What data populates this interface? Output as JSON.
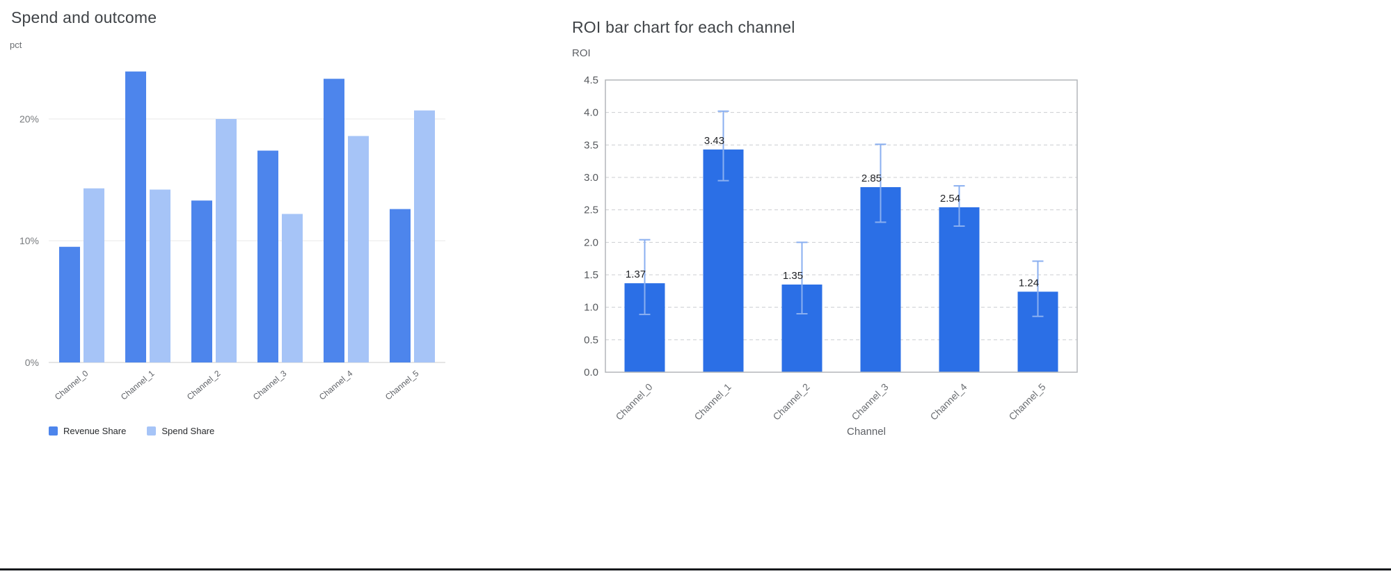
{
  "window": {
    "bottom_border_color": "#17191c"
  },
  "chart_data": [
    {
      "type": "bar",
      "title": "Spend and outcome",
      "ylabel": "pct",
      "xlabel": "",
      "categories": [
        "Channel_0",
        "Channel_1",
        "Channel_2",
        "Channel_3",
        "Channel_4",
        "Channel_5"
      ],
      "series": [
        {
          "name": "Revenue Share",
          "color": "#4d85ec",
          "values": [
            9.5,
            23.9,
            13.3,
            17.4,
            23.3,
            12.6
          ]
        },
        {
          "name": "Spend Share",
          "color": "#a6c4f7",
          "values": [
            14.3,
            14.2,
            20.0,
            12.2,
            18.6,
            20.7
          ]
        }
      ],
      "value_format": "percent",
      "ylim": [
        0,
        24.5
      ],
      "yticks": [
        {
          "value": 0,
          "label": "0%"
        },
        {
          "value": 10,
          "label": "10%"
        },
        {
          "value": 20,
          "label": "20%"
        }
      ],
      "grid": true,
      "legend_position": "bottom"
    },
    {
      "type": "bar",
      "title": "ROI bar chart for each channel",
      "xlabel": "Channel",
      "ylabel": "ROI",
      "categories": [
        "Channel_0",
        "Channel_1",
        "Channel_2",
        "Channel_3",
        "Channel_4",
        "Channel_5"
      ],
      "values": [
        1.37,
        3.43,
        1.35,
        2.85,
        2.54,
        1.24
      ],
      "data_labels": [
        "1.37",
        "3.43",
        "1.35",
        "2.85",
        "2.54",
        "1.24"
      ],
      "error_bars": {
        "color": "#8aaff0",
        "ranges": [
          [
            0.89,
            2.04
          ],
          [
            2.95,
            4.02
          ],
          [
            0.9,
            2.0
          ],
          [
            2.31,
            3.51
          ],
          [
            2.25,
            2.87
          ],
          [
            0.86,
            1.71
          ]
        ]
      },
      "bar_color": "#2b6fe6",
      "ylim": [
        0,
        4.5
      ],
      "ytick_step": 0.5,
      "grid": "dashed-horizontal",
      "legend_position": "none"
    }
  ]
}
